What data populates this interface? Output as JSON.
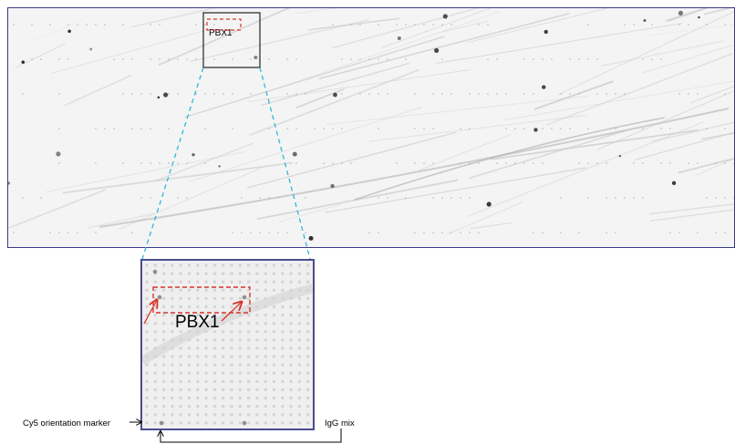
{
  "figure": {
    "top_label": "PBX1",
    "zoom_label": "PBX1",
    "cy5_label": "Cy5 orientation marker",
    "igg_label": "IgG mix"
  },
  "colors": {
    "panel_border": "#3a3a8a",
    "zoom_border": "#4b4b8f",
    "highlight_box": "#d9342b",
    "connector": "#2fb6d8",
    "spot": "#9c9c9c"
  }
}
